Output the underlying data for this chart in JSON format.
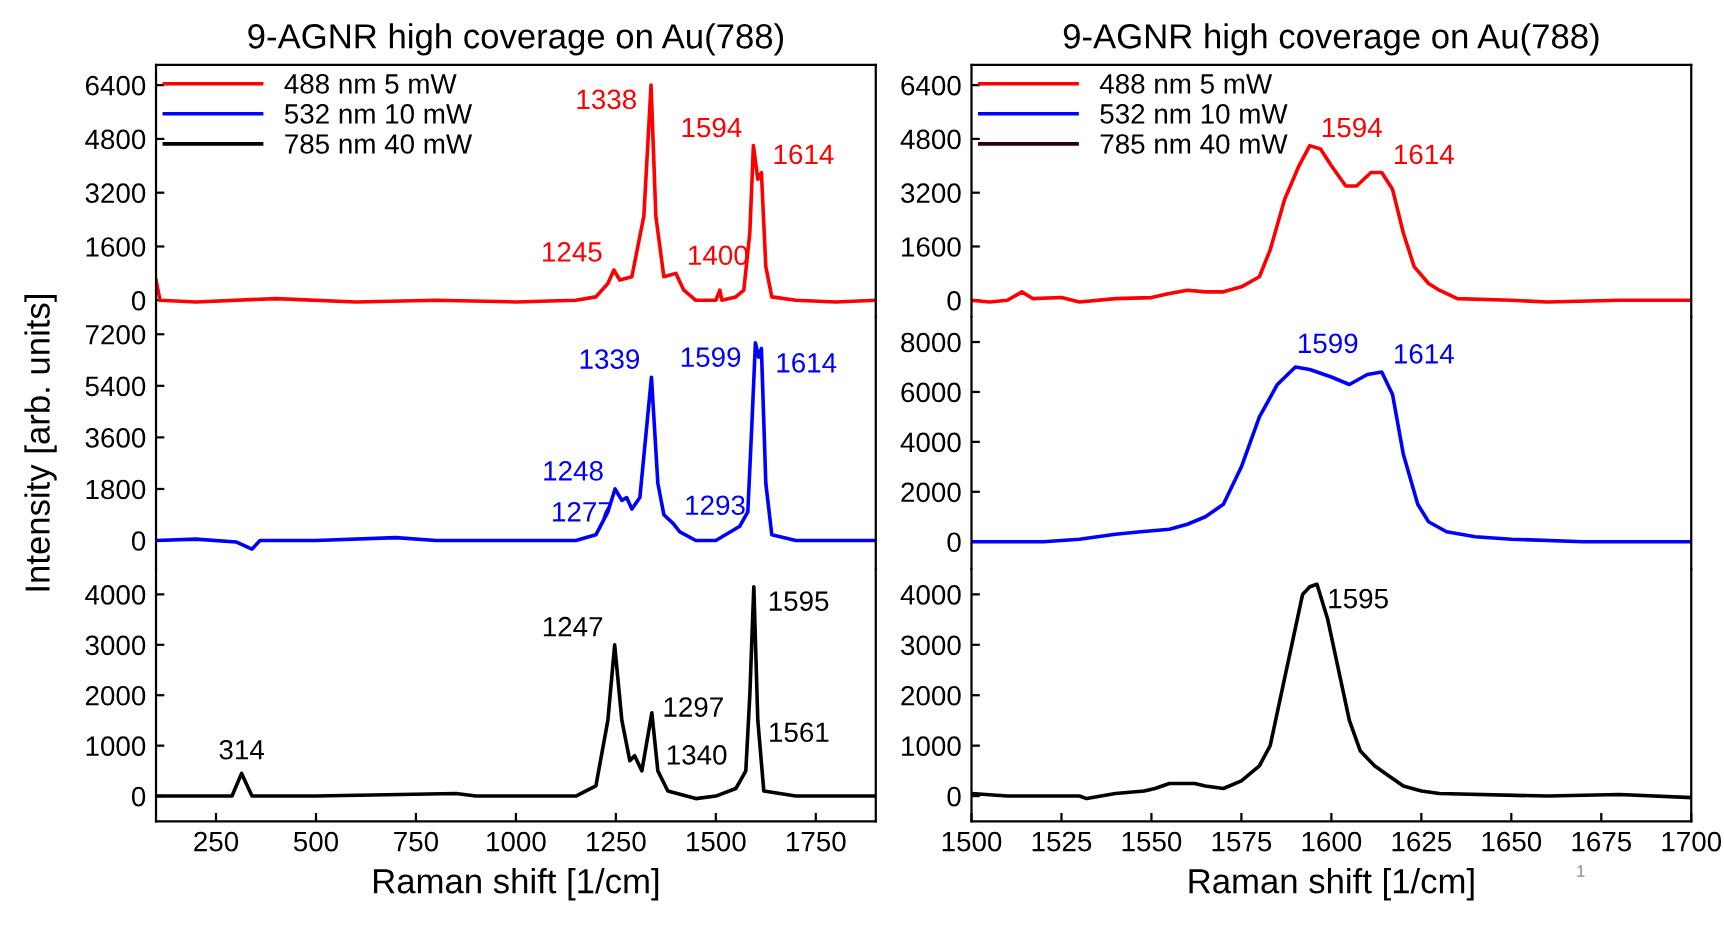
{
  "chart_data": [
    {
      "type": "line",
      "title": "9-AGNR high coverage on Au(788)",
      "xlim": [
        100,
        1900
      ],
      "xticks": [
        250,
        500,
        750,
        1000,
        1250,
        1500,
        1750
      ],
      "ylim": [
        -500,
        7000
      ],
      "yticks": [
        0,
        1600,
        3200,
        4800,
        6400
      ],
      "tick_labels": "y",
      "legend": "top left",
      "series": [
        {
          "name": "488 nm 5 mW",
          "color": "#ff0000",
          "x": [
            100,
            110,
            200,
            400,
            600,
            800,
            1000,
            1150,
            1200,
            1230,
            1245,
            1260,
            1290,
            1320,
            1338,
            1350,
            1370,
            1400,
            1420,
            1450,
            1500,
            1510,
            1515,
            1550,
            1570,
            1585,
            1594,
            1605,
            1614,
            1625,
            1640,
            1700,
            1800,
            1900
          ],
          "values": [
            600,
            0,
            -50,
            50,
            -50,
            0,
            -50,
            0,
            100,
            500,
            900,
            600,
            700,
            2500,
            6400,
            2500,
            700,
            800,
            300,
            0,
            0,
            300,
            0,
            100,
            300,
            2000,
            4600,
            3600,
            3800,
            1000,
            100,
            0,
            -50,
            0
          ]
        },
        {
          "name": "532 nm 10 mW",
          "color": "#0000ff"
        },
        {
          "name": "785 nm 40 mW",
          "color": "#000000"
        }
      ],
      "annotations": [
        {
          "text": "1245",
          "x": 1245,
          "y": 900
        },
        {
          "text": "1338",
          "x": 1338,
          "y": 6400
        },
        {
          "text": "1400",
          "x": 1400,
          "y": 800
        },
        {
          "text": "1594",
          "x": 1594,
          "y": 4600
        },
        {
          "text": "1614",
          "x": 1614,
          "y": 3800
        }
      ]
    },
    {
      "type": "line",
      "title": "9-AGNR high coverage on Au(788)",
      "xlim": [
        1500,
        1700
      ],
      "xticks": [
        1500,
        1525,
        1550,
        1575,
        1600,
        1625,
        1650,
        1675,
        1700
      ],
      "ylim": [
        -500,
        7000
      ],
      "yticks": [
        0,
        1600,
        3200,
        4800,
        6400
      ],
      "tick_labels": "y",
      "legend": "top left",
      "series": [
        {
          "name": "488 nm 5 mW",
          "color": "#ff0000",
          "x": [
            1500,
            1505,
            1510,
            1514,
            1517,
            1525,
            1530,
            1540,
            1550,
            1555,
            1560,
            1565,
            1570,
            1575,
            1580,
            1583,
            1587,
            1591,
            1594,
            1597,
            1600,
            1604,
            1607,
            1611,
            1614,
            1617,
            1620,
            1623,
            1627,
            1630,
            1635,
            1650,
            1660,
            1680,
            1700
          ],
          "values": [
            0,
            -50,
            0,
            250,
            50,
            80,
            -50,
            50,
            80,
            200,
            300,
            250,
            250,
            400,
            700,
            1500,
            3000,
            4000,
            4600,
            4500,
            4000,
            3400,
            3400,
            3800,
            3800,
            3300,
            2000,
            1000,
            500,
            300,
            50,
            0,
            -50,
            0,
            0
          ]
        },
        {
          "name": "532 nm 10 mW",
          "color": "#0000ff"
        },
        {
          "name": "785 nm 40 mW",
          "color": "#2b0000"
        }
      ],
      "annotations": [
        {
          "text": "1594",
          "x": 1594,
          "y": 4600
        },
        {
          "text": "1614",
          "x": 1614,
          "y": 3800
        }
      ]
    },
    {
      "type": "line",
      "ylabel": "Intensity [arb. units]",
      "xlim": [
        100,
        1900
      ],
      "xticks": [
        250,
        500,
        750,
        1000,
        1250,
        1500,
        1750
      ],
      "ylim": [
        -1000,
        7800
      ],
      "yticks": [
        0,
        1800,
        3600,
        5400,
        7200
      ],
      "tick_labels": "y",
      "series": [
        {
          "color": "#0000ff",
          "x": [
            100,
            200,
            300,
            340,
            360,
            500,
            700,
            800,
            1000,
            1150,
            1200,
            1230,
            1248,
            1265,
            1277,
            1290,
            1310,
            1339,
            1355,
            1370,
            1393,
            1410,
            1450,
            1500,
            1560,
            1580,
            1590,
            1599,
            1607,
            1614,
            1625,
            1640,
            1700,
            1900
          ],
          "values": [
            0,
            50,
            -50,
            -300,
            0,
            0,
            100,
            0,
            0,
            0,
            200,
            1000,
            1800,
            1400,
            1500,
            1100,
            1500,
            5700,
            2000,
            900,
            600,
            300,
            0,
            0,
            500,
            1000,
            4000,
            6900,
            6400,
            6700,
            2000,
            200,
            0,
            0
          ]
        }
      ],
      "annotations": [
        {
          "text": "1248",
          "x": 1248,
          "y": 1800
        },
        {
          "text": "1277",
          "x": 1277,
          "y": 1500
        },
        {
          "text": "1339",
          "x": 1339,
          "y": 5700
        },
        {
          "text": "1293",
          "x": 1393,
          "y": 600
        },
        {
          "text": "1599",
          "x": 1599,
          "y": 6900
        },
        {
          "text": "1614",
          "x": 1614,
          "y": 6700
        }
      ]
    },
    {
      "type": "line",
      "xlim": [
        1500,
        1700
      ],
      "xticks": [
        1500,
        1525,
        1550,
        1575,
        1600,
        1625,
        1650,
        1675,
        1700
      ],
      "ylim": [
        -1100,
        9000
      ],
      "yticks": [
        0,
        2000,
        4000,
        6000,
        8000
      ],
      "tick_labels": "y",
      "series": [
        {
          "color": "#0000ff",
          "x": [
            1500,
            1510,
            1515,
            1520,
            1530,
            1540,
            1547,
            1555,
            1560,
            1565,
            1570,
            1575,
            1580,
            1585,
            1590,
            1594,
            1600,
            1605,
            1610,
            1614,
            1617,
            1620,
            1624,
            1627,
            1632,
            1640,
            1650,
            1670,
            1700
          ],
          "values": [
            0,
            0,
            0,
            0,
            100,
            300,
            400,
            500,
            700,
            1000,
            1500,
            3000,
            5000,
            6300,
            7000,
            6900,
            6600,
            6300,
            6700,
            6800,
            5900,
            3500,
            1500,
            800,
            400,
            200,
            100,
            0,
            0
          ]
        }
      ],
      "annotations": [
        {
          "text": "1599",
          "x": 1599,
          "y": 7000
        },
        {
          "text": "1614",
          "x": 1614,
          "y": 6800
        }
      ]
    },
    {
      "type": "line",
      "xlabel": "Raman shift [1/cm]",
      "xlim": [
        100,
        1900
      ],
      "xticks": [
        250,
        500,
        750,
        1000,
        1250,
        1500,
        1750
      ],
      "ylim": [
        -500,
        4500
      ],
      "yticks": [
        0,
        1000,
        2000,
        3000,
        4000
      ],
      "series": [
        {
          "color": "#000000",
          "x": [
            100,
            290,
            314,
            340,
            500,
            850,
            900,
            1150,
            1200,
            1230,
            1247,
            1265,
            1285,
            1297,
            1315,
            1340,
            1355,
            1380,
            1450,
            1500,
            1550,
            1561,
            1575,
            1585,
            1595,
            1605,
            1620,
            1700,
            1900
          ],
          "values": [
            0,
            0,
            450,
            0,
            0,
            50,
            0,
            0,
            200,
            1500,
            3000,
            1500,
            700,
            800,
            500,
            1650,
            500,
            100,
            -50,
            0,
            150,
            300,
            500,
            2000,
            4150,
            1500,
            100,
            0,
            0
          ]
        }
      ],
      "annotations": [
        {
          "text": "314",
          "x": 314,
          "y": 450
        },
        {
          "text": "1247",
          "x": 1247,
          "y": 3000
        },
        {
          "text": "1297",
          "x": 1297,
          "y": 800
        },
        {
          "text": "1340",
          "x": 1340,
          "y": 1650
        },
        {
          "text": "1561",
          "x": 1561,
          "y": 300
        },
        {
          "text": "1595",
          "x": 1595,
          "y": 4150
        }
      ]
    },
    {
      "type": "line",
      "xlabel": "Raman shift [1/cm]",
      "xlim": [
        1500,
        1700
      ],
      "xticks": [
        1500,
        1525,
        1550,
        1575,
        1600,
        1625,
        1650,
        1675,
        1700
      ],
      "ylim": [
        -500,
        4500
      ],
      "yticks": [
        0,
        1000,
        2000,
        3000,
        4000
      ],
      "series": [
        {
          "color": "#000000",
          "x": [
            1500,
            1510,
            1530,
            1532,
            1540,
            1548,
            1551,
            1555,
            1562,
            1565,
            1570,
            1575,
            1580,
            1583,
            1586,
            1589,
            1592,
            1594,
            1596,
            1599,
            1602,
            1605,
            1608,
            1612,
            1616,
            1620,
            1625,
            1630,
            1660,
            1680,
            1700
          ],
          "values": [
            50,
            0,
            0,
            -50,
            50,
            100,
            150,
            250,
            250,
            200,
            150,
            300,
            600,
            1000,
            2000,
            3000,
            4000,
            4150,
            4200,
            3500,
            2500,
            1500,
            900,
            600,
            400,
            200,
            100,
            50,
            0,
            30,
            -30
          ]
        }
      ],
      "annotations": [
        {
          "text": "1595",
          "x": 1595,
          "y": 4200
        },
        "1"
      ]
    }
  ]
}
